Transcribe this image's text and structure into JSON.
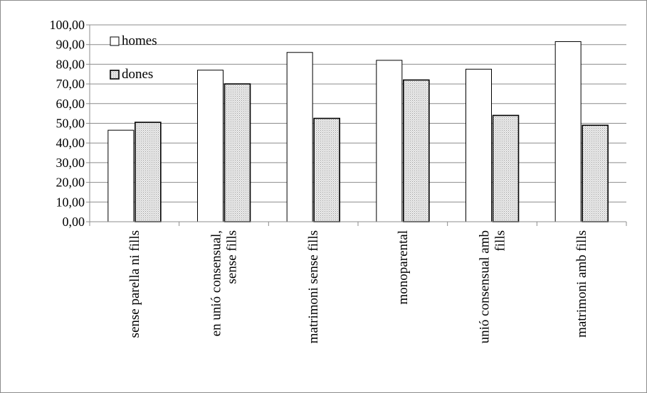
{
  "chart_data": {
    "type": "bar",
    "title": "",
    "xlabel": "",
    "ylabel": "",
    "categories": [
      [
        "sense  parella ni fills"
      ],
      [
        "en unió consensual,",
        "sense fills"
      ],
      [
        "matrimoni sense fills"
      ],
      [
        "monoparental"
      ],
      [
        "unió consensual amb",
        "fills"
      ],
      [
        "matrimoni amb fills"
      ]
    ],
    "series": [
      {
        "name": "homes",
        "values": [
          46.5,
          77.0,
          86.0,
          82.0,
          77.5,
          91.5
        ],
        "fill": "#ffffff",
        "pattern": "none"
      },
      {
        "name": "dones",
        "values": [
          50.5,
          70.0,
          52.5,
          72.0,
          54.0,
          49.0
        ],
        "fill": "#d9d9d9",
        "pattern": "dotted"
      }
    ],
    "ylim": [
      0,
      100
    ],
    "yticks": [
      "0,00",
      "10,00",
      "20,00",
      "30,00",
      "40,00",
      "50,00",
      "60,00",
      "70,00",
      "80,00",
      "90,00",
      "100,00"
    ],
    "grid": true,
    "legend_position": "top-left"
  }
}
